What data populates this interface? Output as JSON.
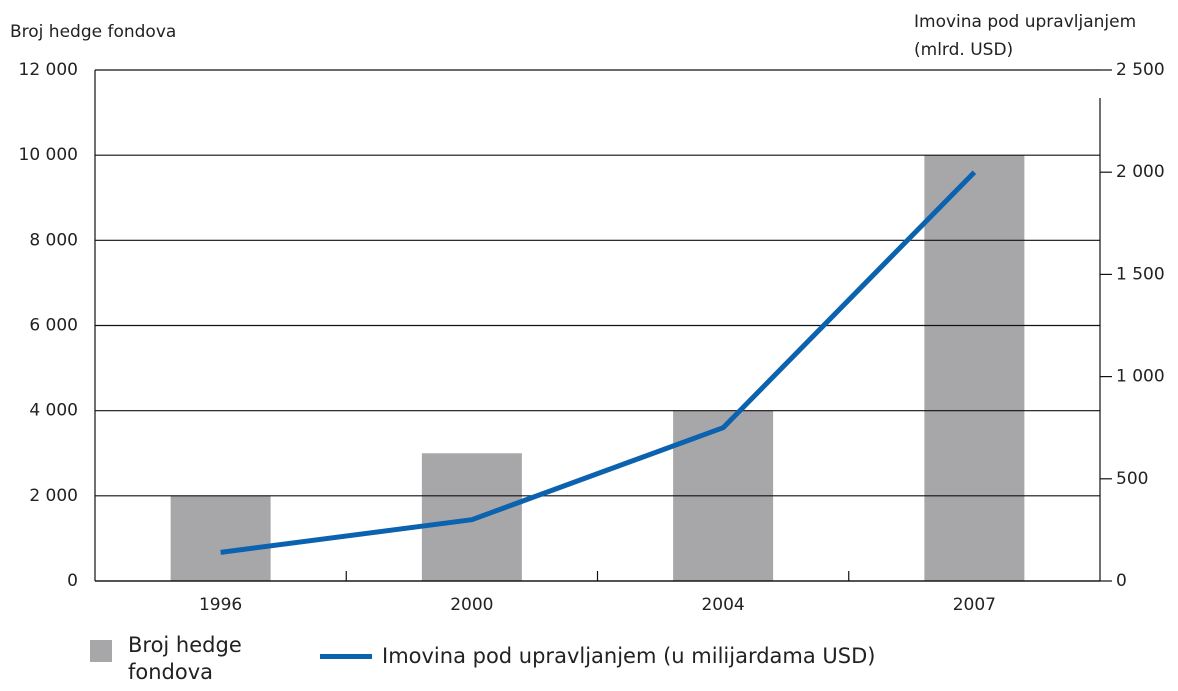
{
  "chart_data": {
    "type": "bar",
    "ylabel": "Broj hedge fondova",
    "y2label": [
      "Imovina pod upravljanjem",
      "(mlrd. USD)"
    ],
    "categories": [
      "1996",
      "2000",
      "2004",
      "2007"
    ],
    "series": [
      {
        "name": "Broj hedge fondova",
        "type": "bar",
        "color": "#a7a7a9",
        "values": [
          2000,
          3000,
          4000,
          10000
        ]
      },
      {
        "name": "Imovina pod upravljanjem (u milijardama USD)",
        "type": "line",
        "axis": "y2",
        "color": "#0b62ae",
        "values": [
          140,
          300,
          750,
          2000
        ]
      }
    ],
    "ylim": [
      0,
      12000
    ],
    "yticks": [
      0,
      {
        "value": 2000,
        "label": "2 000"
      },
      {
        "value": 4000,
        "label": "4 000"
      },
      {
        "value": 6000,
        "label": "6 000"
      },
      {
        "value": 8000,
        "label": "8 000"
      },
      {
        "value": 10000,
        "label": "10 000"
      },
      {
        "value": 12000,
        "label": "12 000"
      }
    ],
    "y2lim": [
      0,
      2500
    ],
    "y2ticks": [
      0,
      500,
      {
        "value": 1000,
        "label": "1 000"
      },
      {
        "value": 1500,
        "label": "1 500"
      },
      {
        "value": 2000,
        "label": "2 000"
      },
      {
        "value": 2500,
        "label": "2 500"
      }
    ],
    "grid": true
  }
}
